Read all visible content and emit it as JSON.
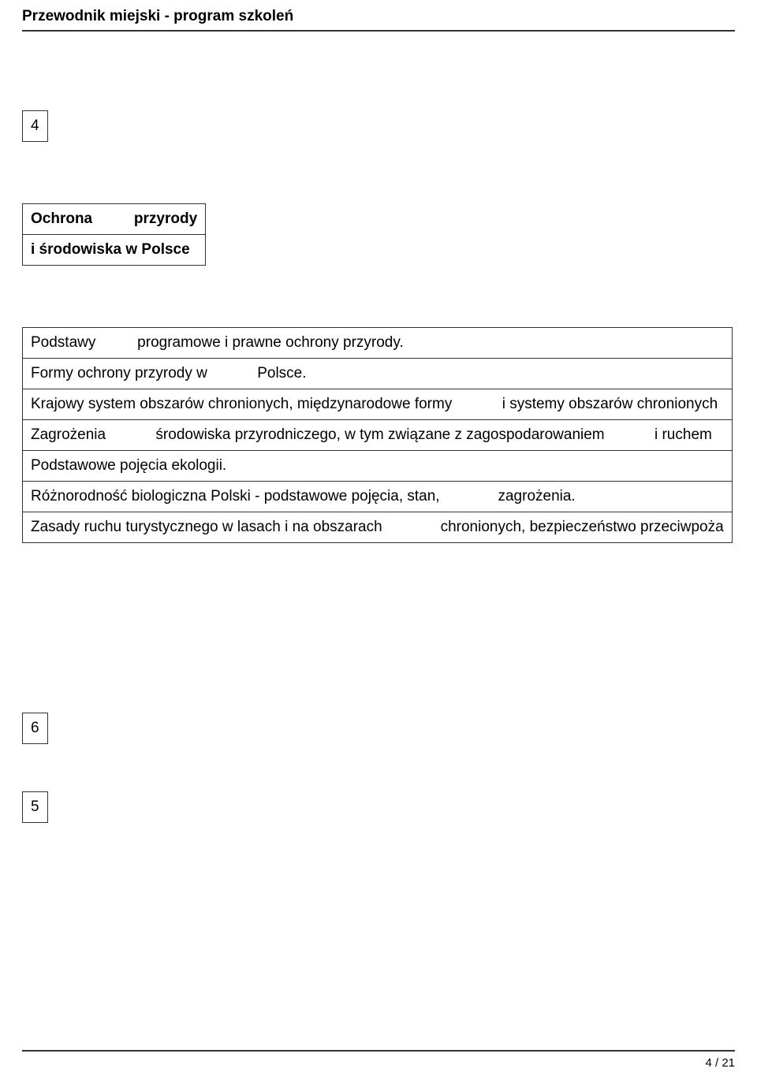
{
  "header": {
    "title": "Przewodnik miejski - program szkoleń"
  },
  "section1": {
    "number": "4",
    "title_row": {
      "a": "Ochrona",
      "gap": "          ",
      "b": "przyrody"
    },
    "subtitle": "i środowiska w Polsce"
  },
  "table": {
    "r1": {
      "a": "Podstawy",
      "gap": "          ",
      "b": "programowe i prawne ochrony przyrody."
    },
    "r2": {
      "a": "Formy ochrony przyrody w",
      "gap": "            ",
      "b": "Polsce."
    },
    "r3": {
      "a": "Krajowy system obszarów chronionych, międzynarodowe formy",
      "gap": "            ",
      "b": "i systemy obszarów chronionych"
    },
    "r4": {
      "a": "Zagrożenia",
      "gap": "            ",
      "b": "środowiska przyrodniczego, w tym związane z zagospodarowaniem",
      "gap2": "            ",
      "c": "i ruchem"
    },
    "r5": {
      "a": "Podstawowe pojęcia ekologii."
    },
    "r6": {
      "a": "Różnorodność biologiczna Polski - podstawowe pojęcia, stan,",
      "gap": "              ",
      "b": "zagrożenia."
    },
    "r7": {
      "a": "Zasady ruchu turystycznego w lasach i na obszarach",
      "gap": "              ",
      "b": "chronionych, bezpieczeństwo przeciwpoża"
    }
  },
  "section2": {
    "number": "6"
  },
  "section3": {
    "number": "5"
  },
  "footer": {
    "page": "4 / 21"
  }
}
